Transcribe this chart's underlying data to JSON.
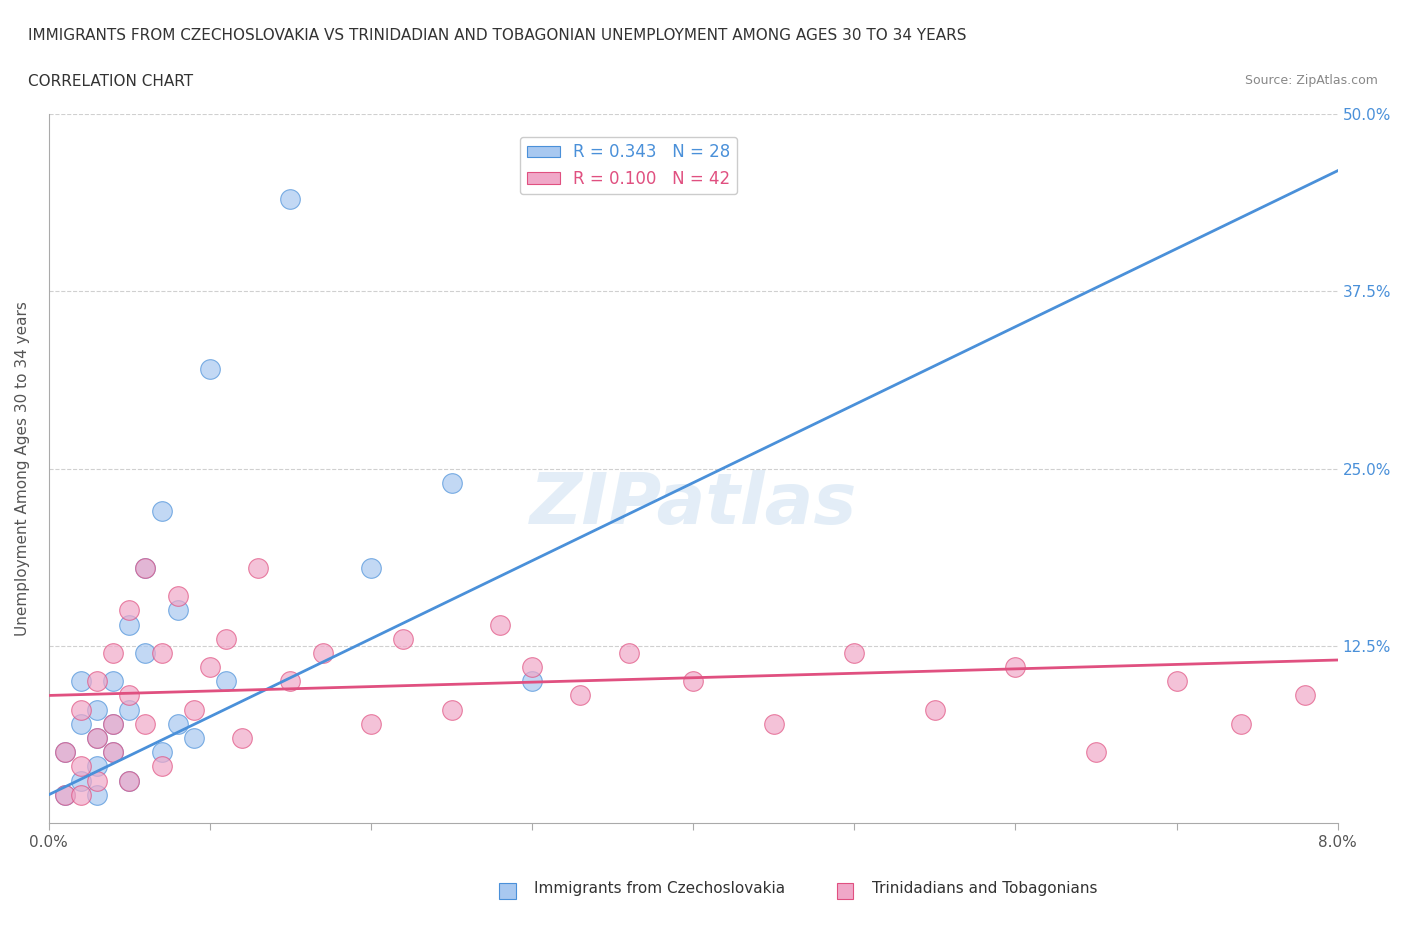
{
  "title_line1": "IMMIGRANTS FROM CZECHOSLOVAKIA VS TRINIDADIAN AND TOBAGONIAN UNEMPLOYMENT AMONG AGES 30 TO 34 YEARS",
  "title_line2": "CORRELATION CHART",
  "source": "Source: ZipAtlas.com",
  "xlabel": "",
  "ylabel": "Unemployment Among Ages 30 to 34 years",
  "xlim": [
    0.0,
    0.08
  ],
  "ylim": [
    0.0,
    0.5
  ],
  "ytick_labels": [
    "12.5%",
    "25.0%",
    "37.5%",
    "50.0%"
  ],
  "ytick_values": [
    0.125,
    0.25,
    0.375,
    0.5
  ],
  "legend_r1": "R = 0.343   N = 28",
  "legend_r2": "R = 0.100   N = 42",
  "blue_color": "#a8c8f0",
  "pink_color": "#f0a8c8",
  "blue_line_color": "#4a90d9",
  "pink_line_color": "#e05080",
  "watermark": "ZIPatlas",
  "blue_scatter_x": [
    0.001,
    0.001,
    0.002,
    0.002,
    0.002,
    0.003,
    0.003,
    0.003,
    0.003,
    0.004,
    0.004,
    0.004,
    0.005,
    0.005,
    0.005,
    0.006,
    0.006,
    0.007,
    0.007,
    0.008,
    0.008,
    0.009,
    0.01,
    0.011,
    0.015,
    0.02,
    0.025,
    0.03
  ],
  "blue_scatter_y": [
    0.02,
    0.05,
    0.03,
    0.07,
    0.1,
    0.04,
    0.06,
    0.08,
    0.02,
    0.05,
    0.07,
    0.1,
    0.08,
    0.14,
    0.03,
    0.18,
    0.12,
    0.05,
    0.22,
    0.07,
    0.15,
    0.06,
    0.32,
    0.1,
    0.44,
    0.18,
    0.24,
    0.1
  ],
  "pink_scatter_x": [
    0.001,
    0.001,
    0.002,
    0.002,
    0.002,
    0.003,
    0.003,
    0.003,
    0.004,
    0.004,
    0.004,
    0.005,
    0.005,
    0.005,
    0.006,
    0.006,
    0.007,
    0.007,
    0.008,
    0.009,
    0.01,
    0.011,
    0.012,
    0.013,
    0.015,
    0.017,
    0.02,
    0.022,
    0.025,
    0.028,
    0.03,
    0.033,
    0.036,
    0.04,
    0.045,
    0.05,
    0.055,
    0.06,
    0.065,
    0.07,
    0.074,
    0.078
  ],
  "pink_scatter_y": [
    0.05,
    0.02,
    0.08,
    0.04,
    0.02,
    0.06,
    0.1,
    0.03,
    0.07,
    0.12,
    0.05,
    0.09,
    0.15,
    0.03,
    0.18,
    0.07,
    0.12,
    0.04,
    0.16,
    0.08,
    0.11,
    0.13,
    0.06,
    0.18,
    0.1,
    0.12,
    0.07,
    0.13,
    0.08,
    0.14,
    0.11,
    0.09,
    0.12,
    0.1,
    0.07,
    0.12,
    0.08,
    0.11,
    0.05,
    0.1,
    0.07,
    0.09
  ],
  "blue_trend_x": [
    0.0,
    0.08
  ],
  "blue_trend_y": [
    0.02,
    0.46
  ],
  "pink_trend_x": [
    0.0,
    0.08
  ],
  "pink_trend_y": [
    0.09,
    0.115
  ],
  "grid_color": "#d0d0d0",
  "bg_color": "#ffffff"
}
